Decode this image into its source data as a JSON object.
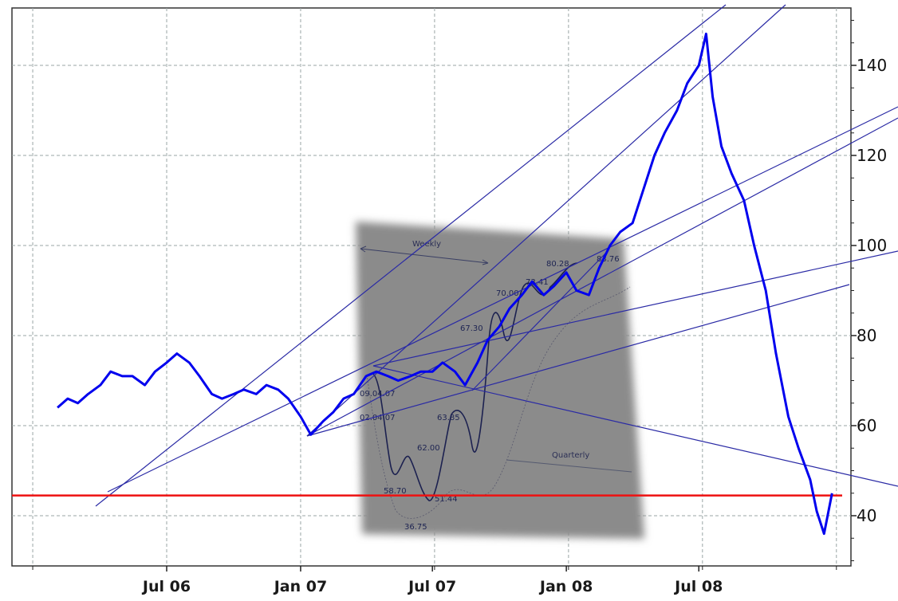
{
  "chart_data": {
    "type": "line",
    "title": "",
    "xlabel": "",
    "ylabel": "",
    "x_ticks": [
      "Jul 06",
      "Jan 07",
      "Jul 07",
      "Jan 08",
      "Jul 08"
    ],
    "y_ticks": [
      40,
      60,
      80,
      100,
      120,
      140
    ],
    "ylim": [
      30,
      150
    ],
    "y_axis_side": "right",
    "grid": true,
    "colors": {
      "price": "#0000ee",
      "support": "#ee1111",
      "trendline": "#2424a8",
      "grid": "#9aa5a5",
      "inset_bg": "#8a8a8a"
    },
    "series": [
      {
        "type": "line",
        "points": [
          [
            "2006-02-01",
            64
          ],
          [
            "2006-02-15",
            66
          ],
          [
            "2006-03-01",
            65
          ],
          [
            "2006-03-15",
            67
          ],
          [
            "2006-04-01",
            69
          ],
          [
            "2006-04-15",
            72
          ],
          [
            "2006-05-01",
            71
          ],
          [
            "2006-05-15",
            71
          ],
          [
            "2006-06-01",
            69
          ],
          [
            "2006-06-15",
            72
          ],
          [
            "2006-07-01",
            74
          ],
          [
            "2006-07-15",
            76
          ],
          [
            "2006-08-01",
            74
          ],
          [
            "2006-08-15",
            71
          ],
          [
            "2006-09-01",
            67
          ],
          [
            "2006-09-15",
            66
          ],
          [
            "2006-10-01",
            67
          ],
          [
            "2006-10-15",
            68
          ],
          [
            "2006-11-01",
            67
          ],
          [
            "2006-11-15",
            69
          ],
          [
            "2006-12-01",
            68
          ],
          [
            "2006-12-15",
            66
          ],
          [
            "2007-01-01",
            62
          ],
          [
            "2007-01-15",
            58
          ],
          [
            "2007-02-01",
            61
          ],
          [
            "2007-02-15",
            63
          ],
          [
            "2007-03-01",
            66
          ],
          [
            "2007-03-15",
            67
          ],
          [
            "2007-04-01",
            71
          ],
          [
            "2007-04-15",
            72
          ],
          [
            "2007-05-01",
            71
          ],
          [
            "2007-05-15",
            70
          ],
          [
            "2007-06-01",
            71
          ],
          [
            "2007-06-15",
            72
          ],
          [
            "2007-07-01",
            72
          ],
          [
            "2007-07-15",
            74
          ],
          [
            "2007-08-01",
            72
          ],
          [
            "2007-08-15",
            69
          ],
          [
            "2007-09-01",
            74
          ],
          [
            "2007-09-15",
            79
          ],
          [
            "2007-10-01",
            82
          ],
          [
            "2007-10-15",
            86
          ],
          [
            "2007-11-01",
            89
          ],
          [
            "2007-11-15",
            92
          ],
          [
            "2007-12-01",
            89
          ],
          [
            "2007-12-15",
            91
          ],
          [
            "2008-01-01",
            94
          ],
          [
            "2008-01-15",
            90
          ],
          [
            "2008-02-01",
            89
          ],
          [
            "2008-02-15",
            95
          ],
          [
            "2008-03-01",
            100
          ],
          [
            "2008-03-15",
            103
          ],
          [
            "2008-04-01",
            105
          ],
          [
            "2008-04-15",
            112
          ],
          [
            "2008-05-01",
            120
          ],
          [
            "2008-05-15",
            125
          ],
          [
            "2008-06-01",
            130
          ],
          [
            "2008-06-15",
            136
          ],
          [
            "2008-07-01",
            140
          ],
          [
            "2008-07-11",
            147
          ],
          [
            "2008-07-20",
            133
          ],
          [
            "2008-08-01",
            122
          ],
          [
            "2008-08-15",
            116
          ],
          [
            "2008-09-01",
            110
          ],
          [
            "2008-09-15",
            100
          ],
          [
            "2008-10-01",
            90
          ],
          [
            "2008-10-15",
            76
          ],
          [
            "2008-11-01",
            62
          ],
          [
            "2008-11-15",
            55
          ],
          [
            "2008-12-01",
            48
          ],
          [
            "2008-12-10",
            41
          ],
          [
            "2008-12-20",
            36
          ],
          [
            "2008-12-31",
            45
          ]
        ]
      }
    ],
    "reference_lines": [
      {
        "type": "horizontal",
        "y": 44.5,
        "color": "red"
      }
    ],
    "annotations": {
      "inset_labels": [
        "Weekly",
        "Quarterly",
        "80.28",
        "73.41",
        "70.00",
        "67.30",
        "63.85",
        "62.00",
        "58.70",
        "51.44",
        "36.75",
        "09.04.07",
        "02.04.07",
        "83.76"
      ]
    }
  }
}
